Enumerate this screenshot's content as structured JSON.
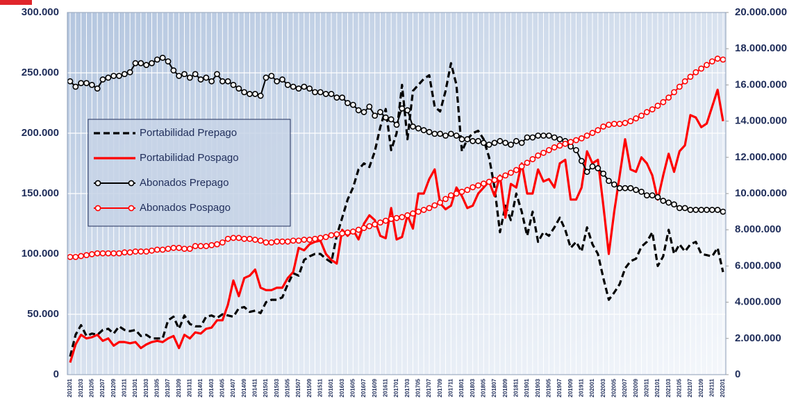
{
  "chart_data": {
    "type": "line",
    "categories": [
      "201201",
      null,
      "201203",
      null,
      "201205",
      null,
      "201207",
      null,
      "201209",
      null,
      "201211",
      null,
      "201301",
      null,
      "201303",
      null,
      "201305",
      null,
      "201307",
      null,
      "201309",
      null,
      "201311",
      null,
      "201401",
      null,
      "201403",
      null,
      "201405",
      null,
      "201407",
      null,
      "201409",
      null,
      "201411",
      null,
      "201501",
      null,
      "201503",
      null,
      "201505",
      null,
      "201507",
      null,
      "201509",
      null,
      "201511",
      null,
      "201601",
      null,
      "201603",
      null,
      "201605",
      null,
      "201607",
      null,
      "201609",
      null,
      "201611",
      null,
      "201701",
      null,
      "201703",
      null,
      "201705",
      null,
      "201707",
      null,
      "201709",
      null,
      "201711",
      null,
      "201801",
      null,
      "201803",
      null,
      "201805",
      null,
      "201807",
      null,
      "201809",
      null,
      "201811",
      null,
      "201901",
      null,
      "201903",
      null,
      "201905",
      null,
      "201907",
      null,
      "201909",
      null,
      "201911",
      null,
      "202001",
      null,
      "202003",
      null,
      "202005",
      null,
      "202007",
      null,
      "202009",
      null,
      "202011",
      null,
      "202101",
      null,
      "202103",
      null,
      "202105",
      null,
      "202107",
      null,
      "202109",
      null,
      "202111",
      null,
      "202201"
    ],
    "ylim": [
      0,
      300000
    ],
    "yticks": [
      0,
      {
        "value": 50000,
        "label": "50.000"
      },
      {
        "value": 100000,
        "label": "100.000"
      },
      {
        "value": 150000,
        "label": "150.000"
      },
      {
        "value": 200000,
        "label": "200.000"
      },
      {
        "value": 250000,
        "label": "250.000"
      },
      {
        "value": 300000,
        "label": "300.000"
      }
    ],
    "y2lim": [
      0,
      20000000
    ],
    "y2ticks": [
      0,
      {
        "value": 2000000,
        "label": "2.000.000"
      },
      {
        "value": 4000000,
        "label": "4.000.000"
      },
      {
        "value": 6000000,
        "label": "6.000.000"
      },
      {
        "value": 8000000,
        "label": "8.000.000"
      },
      {
        "value": 10000000,
        "label": "10.000.000"
      },
      {
        "value": 12000000,
        "label": "12.000.000"
      },
      {
        "value": 14000000,
        "label": "14.000.000"
      },
      {
        "value": 16000000,
        "label": "16.000.000"
      },
      {
        "value": 18000000,
        "label": "18.000.000"
      },
      {
        "value": 20000000,
        "label": "20.000.000"
      }
    ],
    "grid": true,
    "legend": "left",
    "series": [
      {
        "name": "Portabilidad Prepago",
        "color": "#000000",
        "dashed": true,
        "markers": false,
        "values": [
          15000,
          33000,
          41000,
          32000,
          34000,
          33000,
          37000,
          38000,
          34000,
          40000,
          37000,
          36000,
          37000,
          32000,
          33000,
          30000,
          30000,
          30000,
          45000,
          48000,
          38000,
          49000,
          42000,
          40000,
          40000,
          48000,
          49000,
          47000,
          50000,
          49000,
          48000,
          55000,
          56000,
          52000,
          53000,
          51000,
          60000,
          62000,
          62000,
          64000,
          75000,
          84000,
          82000,
          95000,
          98000,
          100000,
          100000,
          96000,
          93000,
          115000,
          130000,
          145000,
          155000,
          170000,
          175000,
          172000,
          185000,
          205000,
          220000,
          186000,
          200000,
          240000,
          195000,
          235000,
          240000,
          245000,
          248000,
          222000,
          218000,
          235000,
          258000,
          240000,
          185000,
          195000,
          200000,
          202000,
          195000,
          180000,
          155000,
          118000,
          140000,
          128000,
          150000,
          135000,
          115000,
          135000,
          110000,
          118000,
          115000,
          122000,
          130000,
          120000,
          105000,
          110000,
          102000,
          122000,
          108000,
          100000,
          80000,
          62000,
          68000,
          75000,
          88000,
          94000,
          96000,
          106000,
          110000,
          118000,
          90000,
          98000,
          120000,
          100000,
          108000,
          102000,
          108000,
          110000,
          100000,
          99000,
          98000,
          105000,
          85000
        ]
      },
      {
        "name": "Portabilidad Pospago",
        "color": "#ff0000",
        "dashed": false,
        "markers": false,
        "values": [
          10000,
          25000,
          33000,
          30000,
          31000,
          33000,
          28000,
          30000,
          24000,
          27000,
          27000,
          26000,
          27000,
          22000,
          25000,
          27000,
          28000,
          27000,
          30000,
          32000,
          22000,
          33000,
          30000,
          35000,
          34000,
          38000,
          39000,
          45000,
          45000,
          58000,
          78000,
          65000,
          80000,
          82000,
          87000,
          72000,
          70000,
          70000,
          72000,
          72000,
          80000,
          85000,
          105000,
          103000,
          108000,
          110000,
          111000,
          100000,
          95000,
          92000,
          120000,
          115000,
          120000,
          112000,
          125000,
          132000,
          128000,
          115000,
          113000,
          138000,
          112000,
          114000,
          132000,
          121000,
          150000,
          150000,
          162000,
          170000,
          142000,
          137000,
          140000,
          155000,
          148000,
          138000,
          140000,
          150000,
          155000,
          160000,
          148000,
          165000,
          130000,
          158000,
          155000,
          175000,
          150000,
          150000,
          170000,
          160000,
          162000,
          155000,
          175000,
          178000,
          145000,
          145000,
          155000,
          185000,
          175000,
          178000,
          140000,
          100000,
          135000,
          165000,
          195000,
          170000,
          168000,
          180000,
          175000,
          165000,
          145000,
          165000,
          183000,
          168000,
          185000,
          190000,
          215000,
          213000,
          205000,
          208000,
          222000,
          236000,
          210000
        ]
      },
      {
        "name": "Abonados Prepago",
        "color": "#000000",
        "dashed": false,
        "markers": true,
        "axis": "y2",
        "values": [
          16200000,
          15900000,
          16100000,
          16100000,
          16000000,
          15800000,
          16300000,
          16400000,
          16500000,
          16500000,
          16600000,
          16700000,
          17200000,
          17200000,
          17100000,
          17200000,
          17400000,
          17500000,
          17300000,
          16800000,
          16500000,
          16600000,
          16400000,
          16600000,
          16300000,
          16400000,
          16200000,
          16600000,
          16200000,
          16200000,
          16000000,
          15800000,
          15600000,
          15500000,
          15500000,
          15400000,
          16400000,
          16500000,
          16200000,
          16300000,
          16000000,
          15900000,
          15800000,
          15900000,
          15800000,
          15600000,
          15600000,
          15500000,
          15500000,
          15300000,
          15300000,
          15000000,
          14900000,
          14600000,
          14500000,
          14800000,
          14300000,
          14500000,
          14200000,
          14100000,
          13800000,
          14700000,
          14600000,
          13700000,
          13600000,
          13500000,
          13400000,
          13300000,
          13300000,
          13200000,
          13300000,
          13200000,
          13000000,
          13000000,
          12900000,
          12900000,
          12800000,
          12700000,
          12800000,
          12900000,
          12800000,
          12700000,
          12900000,
          12800000,
          13100000,
          13100000,
          13200000,
          13200000,
          13200000,
          13100000,
          13000000,
          12900000,
          12600000,
          12400000,
          11800000,
          11200000,
          11500000,
          11400000,
          11100000,
          10700000,
          10500000,
          10300000,
          10300000,
          10300000,
          10200000,
          10100000,
          9900000,
          9900000,
          9800000,
          9600000,
          9500000,
          9400000,
          9200000,
          9200000,
          9100000,
          9100000,
          9100000,
          9100000,
          9100000,
          9100000,
          9000000
        ]
      },
      {
        "name": "Abonados Pospago",
        "color": "#ff0000",
        "dashed": false,
        "markers": true,
        "axis": "y2",
        "values": [
          6500000,
          6500000,
          6550000,
          6600000,
          6650000,
          6700000,
          6700000,
          6700000,
          6700000,
          6700000,
          6750000,
          6750000,
          6800000,
          6800000,
          6800000,
          6850000,
          6900000,
          6900000,
          6950000,
          7000000,
          7000000,
          6950000,
          6950000,
          7100000,
          7100000,
          7100000,
          7150000,
          7200000,
          7300000,
          7500000,
          7550000,
          7550000,
          7500000,
          7500000,
          7450000,
          7400000,
          7300000,
          7300000,
          7350000,
          7350000,
          7350000,
          7400000,
          7400000,
          7450000,
          7450000,
          7500000,
          7550000,
          7600000,
          7700000,
          7750000,
          7800000,
          7850000,
          7900000,
          8000000,
          8100000,
          8200000,
          8300000,
          8400000,
          8500000,
          8600000,
          8650000,
          8700000,
          8800000,
          8900000,
          9000000,
          9100000,
          9200000,
          9350000,
          9500000,
          9700000,
          9900000,
          10000000,
          10100000,
          10200000,
          10350000,
          10450000,
          10550000,
          10650000,
          10750000,
          10850000,
          11000000,
          11150000,
          11300000,
          11500000,
          11700000,
          11900000,
          12100000,
          12250000,
          12400000,
          12550000,
          12650000,
          12750000,
          12850000,
          12950000,
          13050000,
          13200000,
          13350000,
          13500000,
          13700000,
          13800000,
          13850000,
          13850000,
          13900000,
          14000000,
          14150000,
          14300000,
          14500000,
          14650000,
          14850000,
          15050000,
          15300000,
          15600000,
          15900000,
          16200000,
          16450000,
          16700000,
          16900000,
          17100000,
          17300000,
          17450000,
          17400000
        ]
      }
    ]
  }
}
